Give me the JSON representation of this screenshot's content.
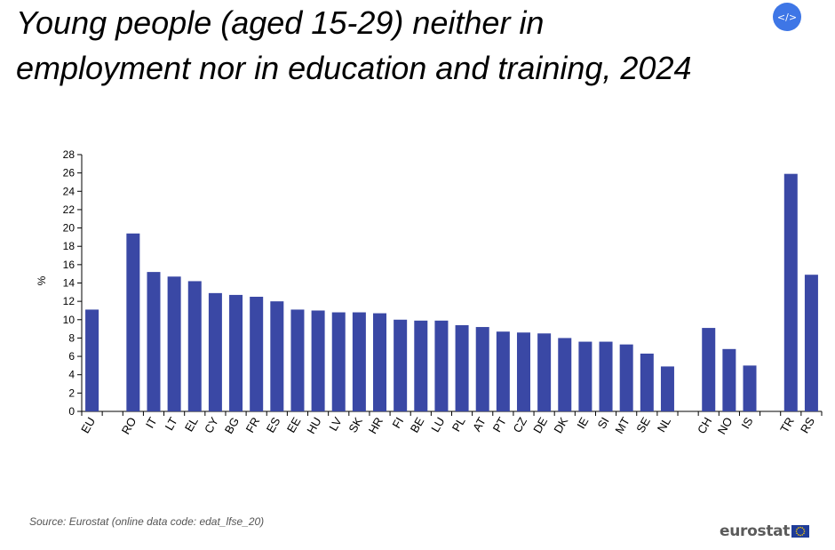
{
  "title": "Young people (aged 15-29) neither in employment nor in education and training, 2024",
  "embed_label": "</>",
  "source": "Source: Eurostat (online data code: edat_lfse_20)",
  "logo_text": "eurostat",
  "colors": {
    "bar": "#3a48a5",
    "axis": "#000000",
    "title": "#000000",
    "embed": "#3e76e6"
  },
  "icons": {
    "embed": "code-embed-icon",
    "flag": "eu-flag-icon"
  },
  "chart_data": {
    "type": "bar",
    "title": "Young people (aged 15-29) neither in employment nor in education and training, 2024",
    "xlabel": "",
    "ylabel": "%",
    "ylim": [
      0,
      28
    ],
    "yticks": [
      0,
      2,
      4,
      6,
      8,
      10,
      12,
      14,
      16,
      18,
      20,
      22,
      24,
      26,
      28
    ],
    "grid": false,
    "legend": "none",
    "categories": [
      "EU",
      "",
      "RO",
      "IT",
      "LT",
      "EL",
      "CY",
      "BG",
      "FR",
      "ES",
      "EE",
      "HU",
      "LV",
      "SK",
      "HR",
      "FI",
      "BE",
      "LU",
      "PL",
      "AT",
      "PT",
      "CZ",
      "DE",
      "DK",
      "IE",
      "SI",
      "MT",
      "SE",
      "NL",
      "",
      "CH",
      "NO",
      "IS",
      "",
      "TR",
      "RS"
    ],
    "values": [
      11.1,
      null,
      19.4,
      15.2,
      14.7,
      14.2,
      12.9,
      12.7,
      12.5,
      12.0,
      11.1,
      11.0,
      10.8,
      10.8,
      10.7,
      10.0,
      9.9,
      9.9,
      9.4,
      9.2,
      8.7,
      8.6,
      8.5,
      8.0,
      7.6,
      7.6,
      7.3,
      6.3,
      4.9,
      null,
      9.1,
      6.8,
      5.0,
      null,
      25.9,
      14.9
    ]
  }
}
